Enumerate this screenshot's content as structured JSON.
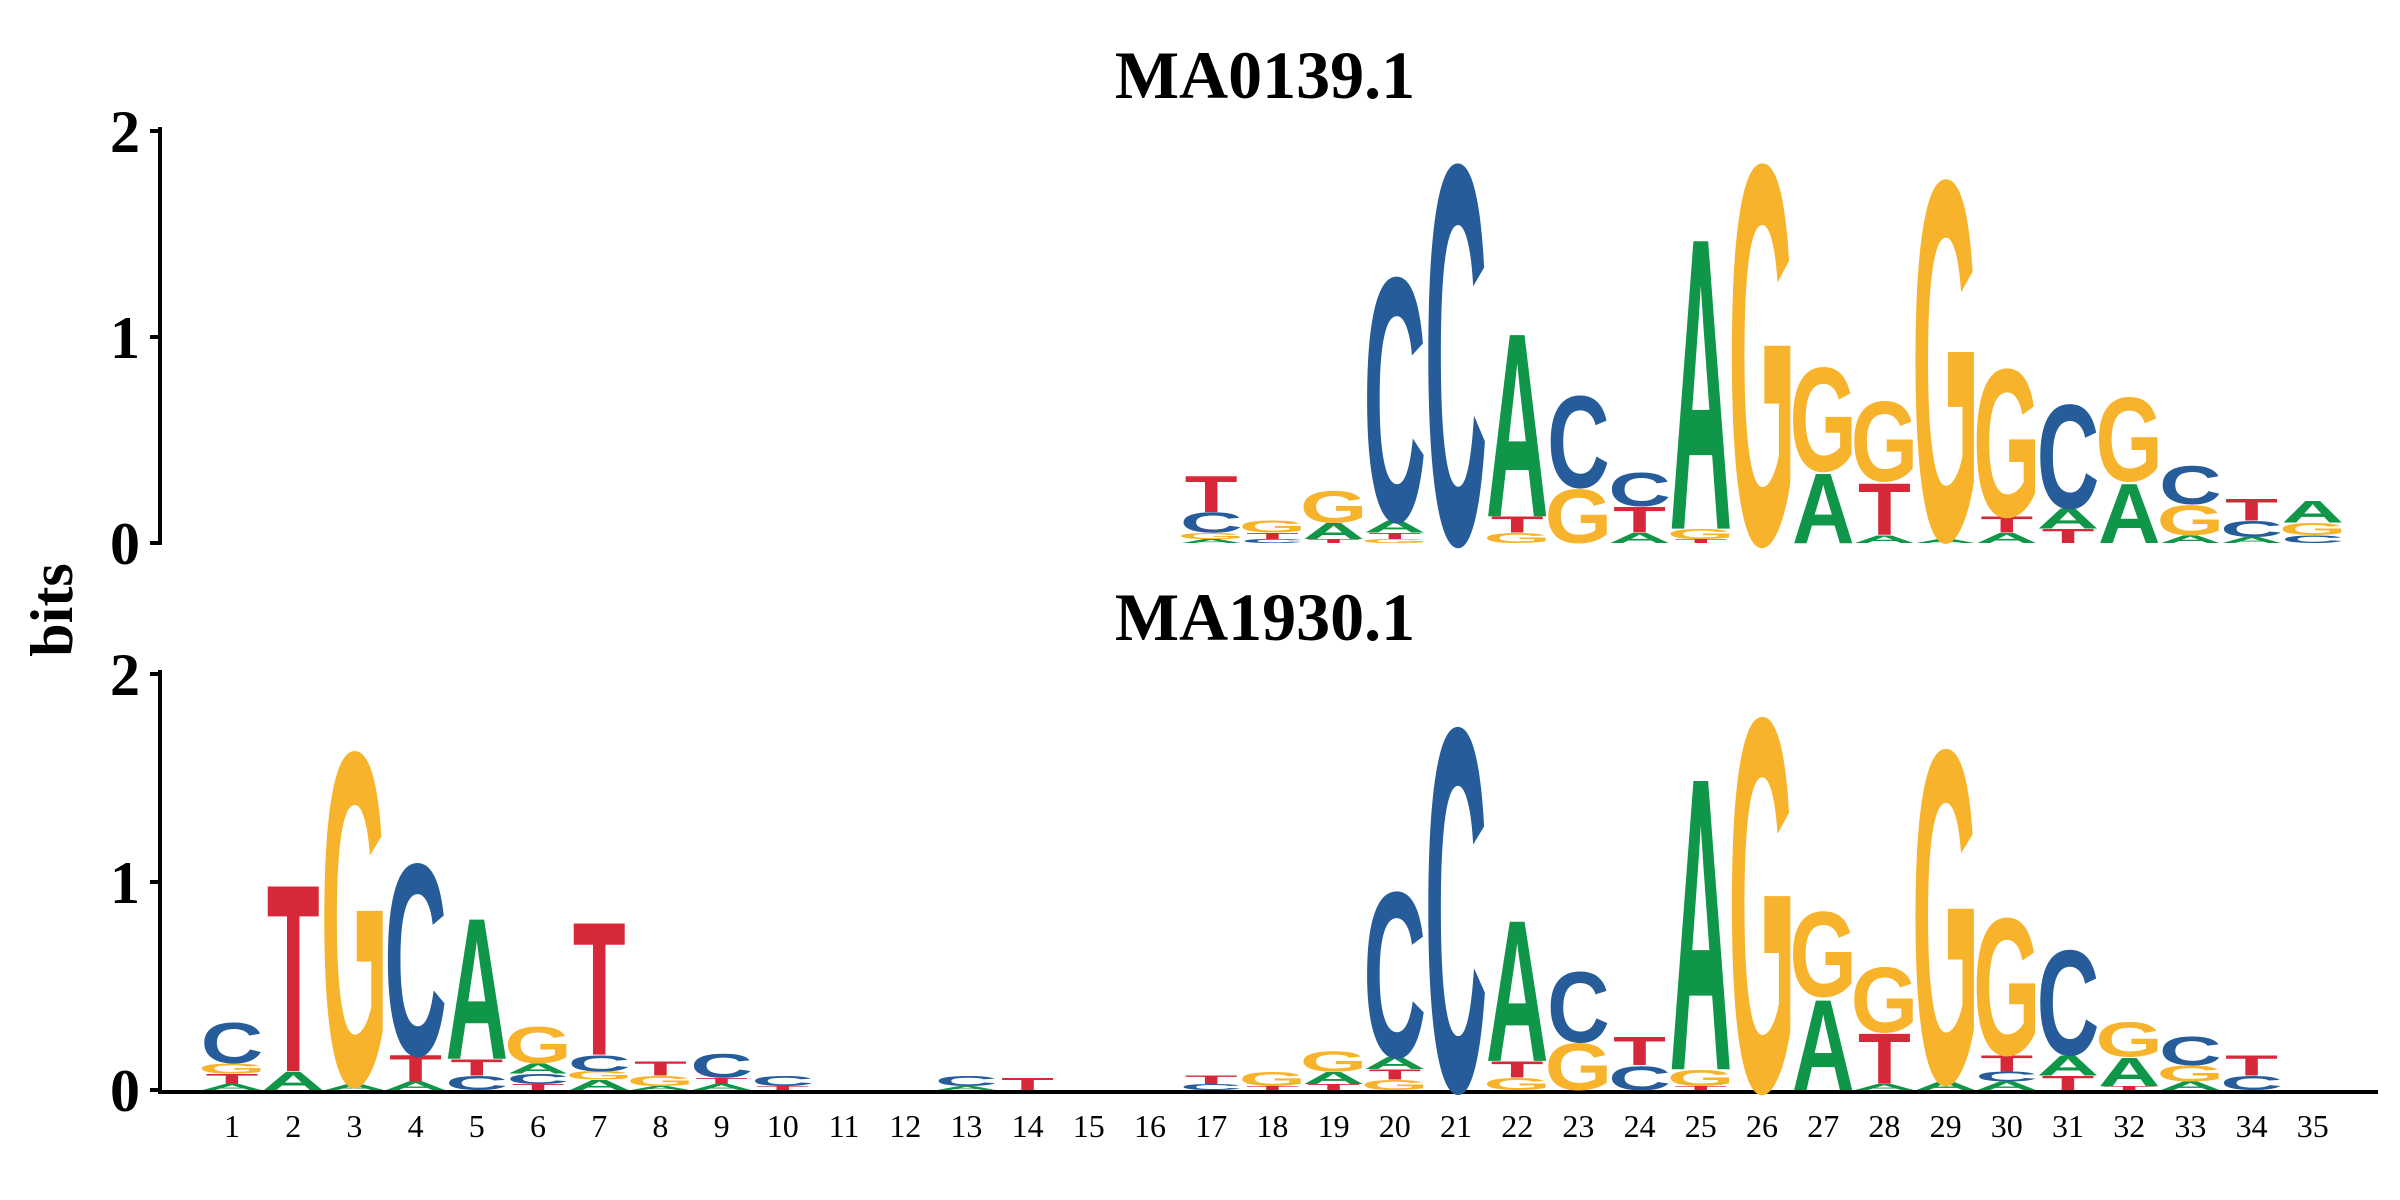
{
  "chart_data": {
    "type": "sequence-logo",
    "ylabel": "bits",
    "ylim": [
      0,
      2
    ],
    "yticks": [
      "0",
      "1",
      "2"
    ],
    "positions": [
      "1",
      "2",
      "3",
      "4",
      "5",
      "6",
      "7",
      "8",
      "9",
      "10",
      "11",
      "12",
      "13",
      "14",
      "15",
      "16",
      "17",
      "18",
      "19",
      "20",
      "21",
      "22",
      "23",
      "24",
      "25",
      "26",
      "27",
      "28",
      "29",
      "30",
      "31",
      "32",
      "33",
      "34",
      "35"
    ],
    "colors": {
      "A": "#109648",
      "C": "#255C99",
      "G": "#F7B32B",
      "T": "#D62839"
    },
    "motifs": [
      {
        "title": "MA0139.1",
        "columns": [
          {
            "pos": 17,
            "stack": [
              [
                "A",
                0.02
              ],
              [
                "G",
                0.03
              ],
              [
                "C",
                0.1
              ],
              [
                "T",
                0.18
              ]
            ]
          },
          {
            "pos": 18,
            "stack": [
              [
                "C",
                0.02
              ],
              [
                "T",
                0.03
              ],
              [
                "G",
                0.06
              ]
            ]
          },
          {
            "pos": 19,
            "stack": [
              [
                "T",
                0.02
              ],
              [
                "A",
                0.08
              ],
              [
                "G",
                0.16
              ]
            ]
          },
          {
            "pos": 20,
            "stack": [
              [
                "G",
                0.02
              ],
              [
                "T",
                0.03
              ],
              [
                "A",
                0.06
              ],
              [
                "C",
                1.22
              ]
            ]
          },
          {
            "pos": 21,
            "stack": [
              [
                "C",
                1.9
              ]
            ]
          },
          {
            "pos": 22,
            "stack": [
              [
                "G",
                0.05
              ],
              [
                "T",
                0.08
              ],
              [
                "A",
                0.92
              ]
            ]
          },
          {
            "pos": 23,
            "stack": [
              [
                "G",
                0.27
              ],
              [
                "C",
                0.46
              ]
            ]
          },
          {
            "pos": 24,
            "stack": [
              [
                "A",
                0.05
              ],
              [
                "T",
                0.13
              ],
              [
                "C",
                0.17
              ]
            ]
          },
          {
            "pos": 25,
            "stack": [
              [
                "T",
                0.02
              ],
              [
                "G",
                0.05
              ],
              [
                "A",
                1.46
              ]
            ]
          },
          {
            "pos": 26,
            "stack": [
              [
                "G",
                1.9
              ]
            ]
          },
          {
            "pos": 27,
            "stack": [
              [
                "A",
                0.35
              ],
              [
                "G",
                0.52
              ]
            ]
          },
          {
            "pos": 28,
            "stack": [
              [
                "A",
                0.04
              ],
              [
                "T",
                0.26
              ],
              [
                "G",
                0.4
              ]
            ]
          },
          {
            "pos": 29,
            "stack": [
              [
                "A",
                0.02
              ],
              [
                "G",
                1.8
              ]
            ]
          },
          {
            "pos": 30,
            "stack": [
              [
                "A",
                0.05
              ],
              [
                "T",
                0.08
              ],
              [
                "G",
                0.74
              ]
            ]
          },
          {
            "pos": 31,
            "stack": [
              [
                "T",
                0.07
              ],
              [
                "A",
                0.1
              ],
              [
                "C",
                0.52
              ]
            ]
          },
          {
            "pos": 32,
            "stack": [
              [
                "A",
                0.3
              ],
              [
                "G",
                0.42
              ]
            ]
          },
          {
            "pos": 33,
            "stack": [
              [
                "A",
                0.04
              ],
              [
                "G",
                0.15
              ],
              [
                "C",
                0.19
              ]
            ]
          },
          {
            "pos": 34,
            "stack": [
              [
                "A",
                0.03
              ],
              [
                "C",
                0.08
              ],
              [
                "T",
                0.11
              ]
            ]
          },
          {
            "pos": 35,
            "stack": [
              [
                "C",
                0.04
              ],
              [
                "G",
                0.06
              ],
              [
                "A",
                0.11
              ]
            ]
          }
        ]
      },
      {
        "title": "MA1930.1",
        "columns": [
          {
            "pos": 1,
            "stack": [
              [
                "A",
                0.03
              ],
              [
                "T",
                0.05
              ],
              [
                "G",
                0.05
              ],
              [
                "C",
                0.2
              ]
            ]
          },
          {
            "pos": 2,
            "stack": [
              [
                "A",
                0.09
              ],
              [
                "T",
                0.93
              ]
            ]
          },
          {
            "pos": 3,
            "stack": [
              [
                "A",
                0.03
              ],
              [
                "G",
                1.65
              ]
            ]
          },
          {
            "pos": 4,
            "stack": [
              [
                "A",
                0.04
              ],
              [
                "T",
                0.13
              ],
              [
                "C",
                0.95
              ]
            ]
          },
          {
            "pos": 5,
            "stack": [
              [
                "C",
                0.07
              ],
              [
                "T",
                0.08
              ],
              [
                "A",
                0.7
              ]
            ]
          },
          {
            "pos": 6,
            "stack": [
              [
                "T",
                0.03
              ],
              [
                "C",
                0.05
              ],
              [
                "A",
                0.05
              ],
              [
                "G",
                0.18
              ]
            ]
          },
          {
            "pos": 7,
            "stack": [
              [
                "A",
                0.05
              ],
              [
                "G",
                0.04
              ],
              [
                "C",
                0.08
              ],
              [
                "T",
                0.66
              ]
            ]
          },
          {
            "pos": 8,
            "stack": [
              [
                "A",
                0.02
              ],
              [
                "G",
                0.05
              ],
              [
                "T",
                0.07
              ]
            ]
          },
          {
            "pos": 9,
            "stack": [
              [
                "A",
                0.03
              ],
              [
                "T",
                0.03
              ],
              [
                "C",
                0.12
              ]
            ]
          },
          {
            "pos": 10,
            "stack": [
              [
                "T",
                0.02
              ],
              [
                "C",
                0.05
              ]
            ]
          },
          {
            "pos": 13,
            "stack": [
              [
                "A",
                0.02
              ],
              [
                "C",
                0.05
              ]
            ]
          },
          {
            "pos": 14,
            "stack": [
              [
                "T",
                0.06
              ]
            ]
          },
          {
            "pos": 17,
            "stack": [
              [
                "C",
                0.03
              ],
              [
                "T",
                0.04
              ]
            ]
          },
          {
            "pos": 18,
            "stack": [
              [
                "T",
                0.02
              ],
              [
                "G",
                0.07
              ]
            ]
          },
          {
            "pos": 19,
            "stack": [
              [
                "T",
                0.03
              ],
              [
                "A",
                0.06
              ],
              [
                "G",
                0.1
              ]
            ]
          },
          {
            "pos": 20,
            "stack": [
              [
                "G",
                0.05
              ],
              [
                "T",
                0.05
              ],
              [
                "A",
                0.06
              ],
              [
                "C",
                0.82
              ]
            ]
          },
          {
            "pos": 21,
            "stack": [
              [
                "C",
                1.8
              ]
            ]
          },
          {
            "pos": 22,
            "stack": [
              [
                "G",
                0.06
              ],
              [
                "T",
                0.08
              ],
              [
                "A",
                0.7
              ]
            ]
          },
          {
            "pos": 23,
            "stack": [
              [
                "G",
                0.23
              ],
              [
                "C",
                0.35
              ]
            ]
          },
          {
            "pos": 24,
            "stack": [
              [
                "C",
                0.12
              ],
              [
                "T",
                0.14
              ]
            ]
          },
          {
            "pos": 25,
            "stack": [
              [
                "T",
                0.02
              ],
              [
                "G",
                0.08
              ],
              [
                "A",
                1.45
              ]
            ]
          },
          {
            "pos": 26,
            "stack": [
              [
                "G",
                1.85
              ]
            ]
          },
          {
            "pos": 27,
            "stack": [
              [
                "A",
                0.45
              ],
              [
                "G",
                0.42
              ]
            ]
          },
          {
            "pos": 28,
            "stack": [
              [
                "A",
                0.03
              ],
              [
                "T",
                0.25
              ],
              [
                "G",
                0.32
              ]
            ]
          },
          {
            "pos": 29,
            "stack": [
              [
                "A",
                0.04
              ],
              [
                "G",
                1.65
              ]
            ]
          },
          {
            "pos": 30,
            "stack": [
              [
                "A",
                0.04
              ],
              [
                "C",
                0.05
              ],
              [
                "T",
                0.08
              ],
              [
                "G",
                0.68
              ]
            ]
          },
          {
            "pos": 31,
            "stack": [
              [
                "T",
                0.07
              ],
              [
                "A",
                0.1
              ],
              [
                "C",
                0.52
              ]
            ]
          },
          {
            "pos": 32,
            "stack": [
              [
                "T",
                0.02
              ],
              [
                "A",
                0.14
              ],
              [
                "G",
                0.17
              ]
            ]
          },
          {
            "pos": 33,
            "stack": [
              [
                "A",
                0.04
              ],
              [
                "G",
                0.08
              ],
              [
                "C",
                0.14
              ]
            ]
          },
          {
            "pos": 34,
            "stack": [
              [
                "C",
                0.07
              ],
              [
                "T",
                0.1
              ]
            ]
          }
        ]
      }
    ]
  }
}
